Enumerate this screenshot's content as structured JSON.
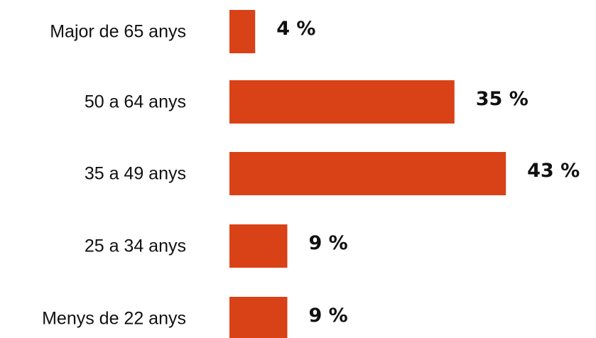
{
  "chart_data": {
    "type": "bar",
    "orientation": "horizontal",
    "title": "",
    "xlabel": "",
    "ylabel": "",
    "categories": [
      "Major de 65 anys",
      "50 a 64 anys",
      "35 a 49 anys",
      "25 a 34 anys",
      "Menys de 22 anys"
    ],
    "values": [
      4,
      35,
      43,
      9,
      9
    ],
    "value_labels": [
      "4 %",
      "35 %",
      "43 %",
      "9 %",
      "9 %"
    ],
    "unit": "%",
    "grid": false,
    "legend": "none",
    "bar_color": "#D94117",
    "text_color": "#111111"
  }
}
